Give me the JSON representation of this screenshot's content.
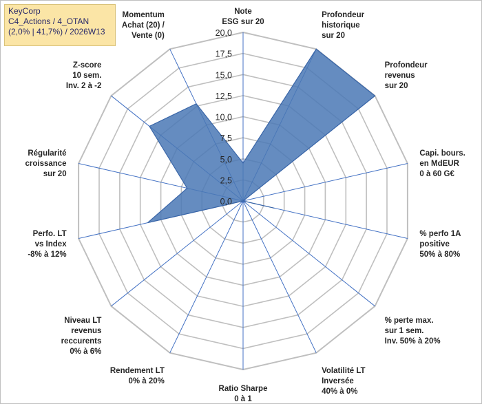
{
  "header": {
    "line1": "KeyCorp",
    "line2": "C4_Actions / 4_OTAN",
    "line3": "(2,0% | 41,7%) / 2026W13"
  },
  "colors": {
    "fill": "#4a78b5",
    "stroke": "#3a66a8",
    "axis": "#4472c4",
    "grid": "#bfbfbf",
    "title_bg": "#fbe5a6"
  },
  "chart_data": {
    "type": "radar",
    "range": [
      0,
      20
    ],
    "grid_step": 2.5,
    "tick_labels": [
      "0,0",
      "2,5",
      "5,0",
      "7,5",
      "10,0",
      "12,5",
      "15,0",
      "17,5",
      "20,0"
    ],
    "axes": [
      {
        "lines": [
          "Note",
          "ESG sur 20"
        ],
        "value": 4.5
      },
      {
        "lines": [
          "Profondeur",
          "historique",
          "sur 20"
        ],
        "value": 20
      },
      {
        "lines": [
          "Profondeur",
          "revenus",
          "sur 20"
        ],
        "value": 20
      },
      {
        "lines": [
          "Capi. bours.",
          "en MdEUR",
          "0 à 60 G€"
        ],
        "value": 0
      },
      {
        "lines": [
          "% perfo 1A",
          "positive",
          "50% à 80%"
        ],
        "value": 3.8
      },
      {
        "lines": [
          "% perte max.",
          "sur 1 sem.",
          "Inv. 50% à 20%"
        ],
        "value": 0
      },
      {
        "lines": [
          "Volatilité LT",
          "Inversée",
          "40% à 0%"
        ],
        "value": 0
      },
      {
        "lines": [
          "Ratio Sharpe",
          "0 à 1"
        ],
        "value": 0
      },
      {
        "lines": [
          "Rendement LT",
          "0% à 20%"
        ],
        "value": 0
      },
      {
        "lines": [
          "Niveau LT",
          "revenus",
          "reccurents",
          "0% à 6%"
        ],
        "value": 0
      },
      {
        "lines": [
          "Perfo. LT",
          "vs Index",
          "-8% à 12%"
        ],
        "value": 11.6
      },
      {
        "lines": [
          "Régularité",
          "croissance",
          "sur 20"
        ],
        "value": 6.8
      },
      {
        "lines": [
          "Z-score",
          "10 sem.",
          "Inv. 2 à -2"
        ],
        "value": 14.2
      },
      {
        "lines": [
          "Momentum",
          "Achat (20) /",
          "Vente (0)"
        ],
        "value": 12.8
      }
    ]
  }
}
